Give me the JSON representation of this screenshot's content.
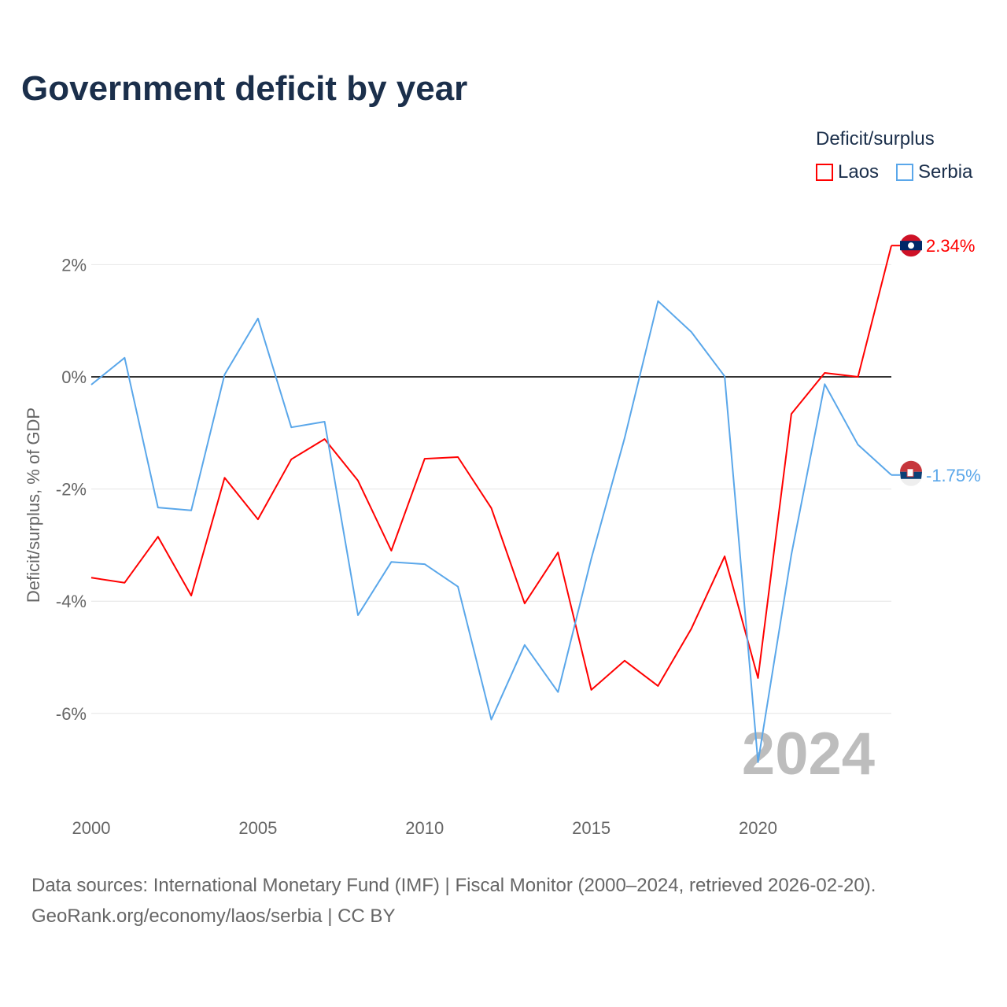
{
  "title": "Government deficit by year",
  "legend": {
    "title": "Deficit/surplus",
    "items": [
      {
        "label": "Laos",
        "color": "#ff0000"
      },
      {
        "label": "Serbia",
        "color": "#5aa7ea"
      }
    ]
  },
  "source": {
    "line1": "Data sources: International Monetary Fund (IMF) | Fiscal Monitor (2000–2024, retrieved 2026-02-20).",
    "line2": "GeoRank.org/economy/laos/serbia | CC BY"
  },
  "chart_data": {
    "type": "line",
    "title": "Government deficit by year",
    "xlabel": "",
    "ylabel": "Deficit/surplus, % of GDP",
    "xlim": [
      2000,
      2024
    ],
    "ylim": [
      -7.3,
      2.6
    ],
    "x_ticks": [
      {
        "v": 2000,
        "label": "2000"
      },
      {
        "v": 2005,
        "label": "2005"
      },
      {
        "v": 2010,
        "label": "2010"
      },
      {
        "v": 2015,
        "label": "2015"
      },
      {
        "v": 2020,
        "label": "2020"
      }
    ],
    "y_ticks": [
      {
        "v": 2,
        "label": "2%"
      },
      {
        "v": 0,
        "label": "0%"
      },
      {
        "v": -2,
        "label": "-2%"
      },
      {
        "v": -4,
        "label": "-4%"
      },
      {
        "v": -6,
        "label": "-6%"
      }
    ],
    "year_watermark": "2024",
    "x": [
      2000,
      2001,
      2002,
      2003,
      2004,
      2005,
      2006,
      2007,
      2008,
      2009,
      2010,
      2011,
      2012,
      2013,
      2014,
      2015,
      2016,
      2017,
      2018,
      2019,
      2020,
      2021,
      2022,
      2023,
      2024
    ],
    "series": [
      {
        "name": "Laos",
        "color": "#ff0000",
        "end_label": "2.34%",
        "values": [
          -3.58,
          -3.67,
          -2.85,
          -3.9,
          -1.8,
          -2.54,
          -1.47,
          -1.11,
          -1.85,
          -3.1,
          -1.46,
          -1.43,
          -2.34,
          -4.04,
          -3.13,
          -5.58,
          -5.06,
          -5.51,
          -4.49,
          -3.2,
          -5.37,
          -0.66,
          0.07,
          0.0,
          2.34
        ]
      },
      {
        "name": "Serbia",
        "color": "#5aa7ea",
        "end_label": "-1.75%",
        "values": [
          -0.14,
          0.34,
          -2.33,
          -2.38,
          0.04,
          1.04,
          -0.9,
          -0.8,
          -4.25,
          -3.3,
          -3.34,
          -3.74,
          -6.11,
          -4.78,
          -5.62,
          -3.24,
          -1.09,
          1.35,
          0.8,
          0.01,
          -6.87,
          -3.17,
          -0.13,
          -1.21,
          -1.75
        ]
      }
    ],
    "grid": true,
    "legend_position": "top-right"
  }
}
